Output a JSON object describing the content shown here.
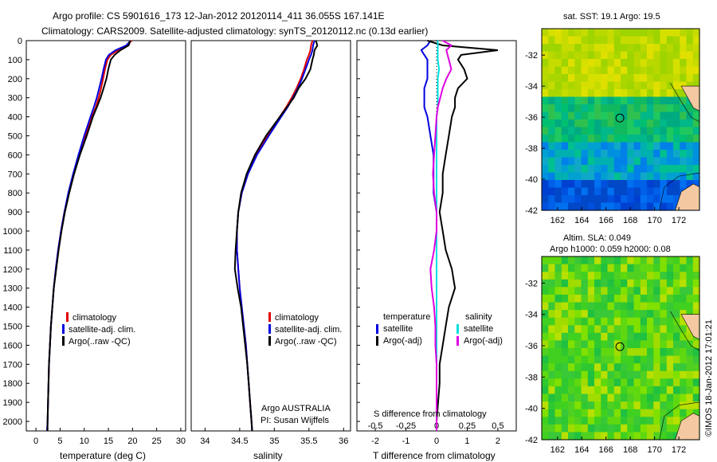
{
  "header": {
    "line1": "Argo profile: CS 5901616_173 12-Jan-2012 20120114_411 36.055S 167.141E",
    "line2": "Climatology: CARS2009. Satellite-adjusted climatology: synTS_20120112.nc (0.13d earlier)"
  },
  "colors": {
    "climatology": "#e00000",
    "satellite": "#0000e0",
    "argo": "#000000",
    "salinity_satellite": "#00e0e0",
    "salinity_argo": "#e000e0"
  },
  "legend_profile": [
    "climatology",
    "satellite-adj. clim.",
    "Argo(..raw -QC)"
  ],
  "legend_diff": {
    "temperature_title": "temperature",
    "salinity_title": "salinity",
    "satellite": "satellite",
    "argo": "Argo(-adj)"
  },
  "annotations": {
    "org": "Argo AUSTRALIA",
    "pi": "PI: Susan Wijffels",
    "watermark": "©IMOS 18-Jan-2012 17:01:21"
  },
  "chart_data": [
    {
      "type": "line",
      "panel": "temperature",
      "xlabel": "temperature (deg C)",
      "ylabel": "",
      "xlim": [
        -2,
        31
      ],
      "ylim": [
        2050,
        0
      ],
      "xticks": [
        0,
        5,
        10,
        15,
        20,
        25,
        30
      ],
      "yticks": [
        0,
        100,
        200,
        300,
        400,
        500,
        600,
        700,
        800,
        900,
        1000,
        1100,
        1200,
        1300,
        1400,
        1500,
        1600,
        1700,
        1800,
        1900,
        2000
      ],
      "depth": [
        0,
        25,
        50,
        75,
        100,
        150,
        200,
        250,
        300,
        350,
        400,
        500,
        600,
        700,
        800,
        900,
        1000,
        1100,
        1200,
        1300,
        1400,
        1500,
        1600,
        1700,
        1800,
        1900,
        2000,
        2050
      ],
      "series": [
        {
          "name": "climatology",
          "values": [
            19.8,
            19.0,
            17.0,
            15.5,
            14.8,
            14.3,
            13.9,
            13.5,
            13.0,
            12.4,
            11.6,
            10.2,
            8.9,
            7.8,
            6.8,
            5.9,
            5.2,
            4.6,
            4.1,
            3.7,
            3.4,
            3.1,
            2.9,
            2.7,
            2.6,
            2.5,
            2.4,
            2.3
          ]
        },
        {
          "name": "satellite-adj. clim.",
          "values": [
            19.6,
            18.7,
            16.5,
            15.1,
            14.5,
            14.0,
            13.6,
            13.1,
            12.6,
            12.0,
            11.3,
            10.0,
            8.8,
            7.7,
            6.7,
            5.9,
            5.2,
            4.6,
            4.1,
            3.7,
            3.4,
            3.1,
            2.9,
            2.7,
            2.6,
            2.5,
            2.4,
            2.3
          ]
        },
        {
          "name": "Argo(..raw -QC)",
          "values": [
            19.5,
            19.2,
            17.5,
            16.3,
            15.5,
            15.0,
            14.6,
            14.0,
            13.4,
            12.6,
            11.8,
            10.5,
            9.1,
            7.9,
            6.9,
            6.0,
            5.3,
            4.7,
            4.2,
            3.7,
            3.4,
            3.1,
            2.9,
            2.7,
            2.6,
            2.5,
            2.4,
            2.4
          ]
        }
      ]
    },
    {
      "type": "line",
      "panel": "salinity",
      "xlabel": "salinity",
      "xlim": [
        33.8,
        36.1
      ],
      "ylim": [
        2050,
        0
      ],
      "xticks": [
        34,
        34.5,
        35,
        35.5,
        36
      ],
      "xtick_labels": [
        "34",
        "34.5",
        "35",
        "35.5",
        "36"
      ],
      "depth": [
        0,
        25,
        50,
        75,
        100,
        150,
        200,
        250,
        300,
        350,
        400,
        500,
        600,
        700,
        800,
        900,
        1000,
        1100,
        1200,
        1300,
        1400,
        1500,
        1600,
        1700,
        1800,
        1900,
        2000,
        2050
      ],
      "series": [
        {
          "name": "climatology",
          "values": [
            35.55,
            35.53,
            35.52,
            35.5,
            35.47,
            35.43,
            35.38,
            35.32,
            35.25,
            35.17,
            35.08,
            34.9,
            34.74,
            34.62,
            34.53,
            34.48,
            34.46,
            34.46,
            34.48,
            34.5,
            34.53,
            34.56,
            34.59,
            34.61,
            34.63,
            34.65,
            34.67,
            34.68
          ]
        },
        {
          "name": "satellite-adj. clim.",
          "values": [
            35.58,
            35.56,
            35.55,
            35.53,
            35.5,
            35.45,
            35.4,
            35.34,
            35.27,
            35.19,
            35.1,
            34.92,
            34.75,
            34.62,
            34.53,
            34.48,
            34.46,
            34.46,
            34.48,
            34.5,
            34.53,
            34.56,
            34.59,
            34.61,
            34.63,
            34.65,
            34.67,
            34.68
          ]
        },
        {
          "name": "Argo(..raw -QC)",
          "values": [
            35.6,
            35.62,
            35.58,
            35.57,
            35.55,
            35.52,
            35.45,
            35.35,
            35.28,
            35.18,
            35.08,
            34.88,
            34.72,
            34.6,
            34.52,
            34.48,
            34.46,
            34.44,
            34.43,
            34.47,
            34.52,
            34.55,
            34.58,
            34.61,
            34.63,
            34.65,
            34.67,
            34.68
          ]
        }
      ]
    },
    {
      "type": "line",
      "panel": "difference",
      "xlabel": "T difference from climatology",
      "xlabel_top": "S difference from climatology",
      "xlim": [
        -2.6,
        2.6
      ],
      "ylim": [
        2050,
        0
      ],
      "xticks": [
        -2,
        -1,
        0,
        1,
        2
      ],
      "s_xticks": [
        -0.5,
        -0.25,
        0,
        0.25,
        0.5
      ],
      "s_xtick_labels": [
        "-0.5",
        "-0.25",
        "0",
        "0.25",
        "0.5"
      ],
      "depth": [
        0,
        25,
        50,
        75,
        100,
        150,
        200,
        250,
        300,
        350,
        400,
        500,
        600,
        700,
        800,
        900,
        1000,
        1100,
        1200,
        1300,
        1400,
        1500,
        1600,
        1700,
        1800,
        1900,
        2000,
        2050
      ],
      "series": [
        {
          "name": "temperature satellite",
          "values": [
            -0.2,
            -0.3,
            -0.5,
            -0.4,
            -0.3,
            -0.3,
            -0.3,
            -0.4,
            -0.4,
            -0.4,
            -0.3,
            -0.2,
            -0.1,
            -0.1,
            -0.1,
            0,
            0,
            0,
            0,
            0,
            0,
            0,
            0,
            0,
            0,
            0,
            0,
            0
          ]
        },
        {
          "name": "temperature Argo(-adj)",
          "values": [
            -0.3,
            0.2,
            2.0,
            0.8,
            0.7,
            0.9,
            1.0,
            0.7,
            0.6,
            0.6,
            0.5,
            0.4,
            0.3,
            0.2,
            0.2,
            0.1,
            0.2,
            0.3,
            0.5,
            0.6,
            0.4,
            0.3,
            0.2,
            0.1,
            0.1,
            0.05,
            0,
            0
          ]
        },
        {
          "name": "salinity satellite",
          "values": [
            0.01,
            0.01,
            0.01,
            0.01,
            0.01,
            0.02,
            0.01,
            0.01,
            0.01,
            0.01,
            0.0,
            0.0,
            0.0,
            0.0,
            0.0,
            0.0,
            0.0,
            0.0,
            0.0,
            0.0,
            0.0,
            0.0,
            0.0,
            0.0,
            0.0,
            0.0,
            0.0,
            0.0
          ]
        },
        {
          "name": "salinity Argo(-adj)",
          "values": [
            0.05,
            0.12,
            0.08,
            0.09,
            0.1,
            0.12,
            0.08,
            0.05,
            0.03,
            0.01,
            0.0,
            -0.01,
            -0.02,
            -0.03,
            -0.02,
            0.0,
            0.0,
            -0.02,
            -0.05,
            -0.04,
            -0.02,
            -0.01,
            -0.01,
            0.0,
            0.0,
            0.0,
            0.0,
            0.0
          ]
        }
      ]
    },
    {
      "type": "heatmap",
      "panel": "sst map",
      "title": "sat. SST: 19.1  Argo: 19.5",
      "xticks": [
        162,
        164,
        166,
        168,
        170,
        172
      ],
      "yticks": [
        -32,
        -34,
        -36,
        -38,
        -40,
        -42
      ],
      "xlim": [
        160.7,
        173.7
      ],
      "ylim": [
        -42,
        -30.3
      ],
      "marker": [
        167.141,
        -36.055
      ]
    },
    {
      "type": "heatmap",
      "panel": "sla map",
      "title": "Altim. SLA: 0.049",
      "subtitle": "Argo h1000: 0.059  h2000: 0.08",
      "xticks": [
        162,
        164,
        166,
        168,
        170,
        172
      ],
      "yticks": [
        -32,
        -34,
        -36,
        -38,
        -40,
        -42
      ],
      "xlim": [
        160.7,
        173.7
      ],
      "ylim": [
        -42,
        -30.3
      ],
      "marker": [
        167.141,
        -36.055
      ]
    }
  ]
}
